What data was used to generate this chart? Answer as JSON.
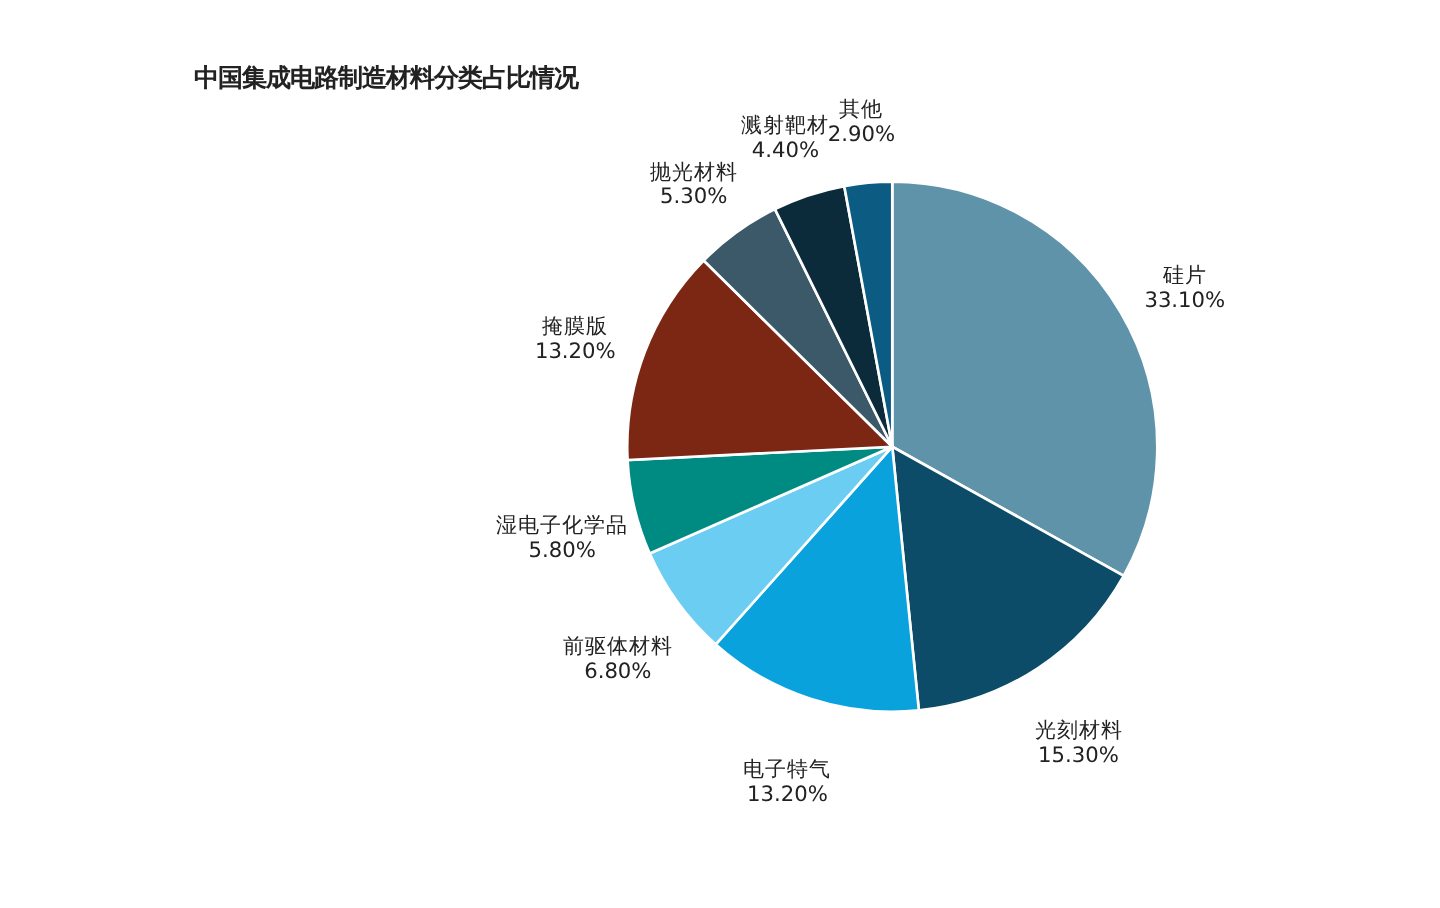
{
  "chart_data": {
    "type": "pie",
    "title": "中国集成电路制造材料分类占比情况",
    "categories": [
      "硅片",
      "光刻材料",
      "电子特气",
      "前驱体材料",
      "湿电子化学品",
      "掩膜版",
      "抛光材料",
      "溅射靶材",
      "其他"
    ],
    "values": [
      33.1,
      15.3,
      13.2,
      6.8,
      5.8,
      13.2,
      5.3,
      4.4,
      2.9
    ],
    "value_labels": [
      "33.10%",
      "15.30%",
      "13.20%",
      "6.80%",
      "5.80%",
      "13.20%",
      "5.30%",
      "4.40%",
      "2.90%"
    ],
    "colors": [
      "#5f93a9",
      "#0d4c68",
      "#0aa2dd",
      "#6ccdf2",
      "#008b82",
      "#7c2713",
      "#3b5968",
      "#0b2a3a",
      "#0b5b82"
    ],
    "legend": false
  }
}
